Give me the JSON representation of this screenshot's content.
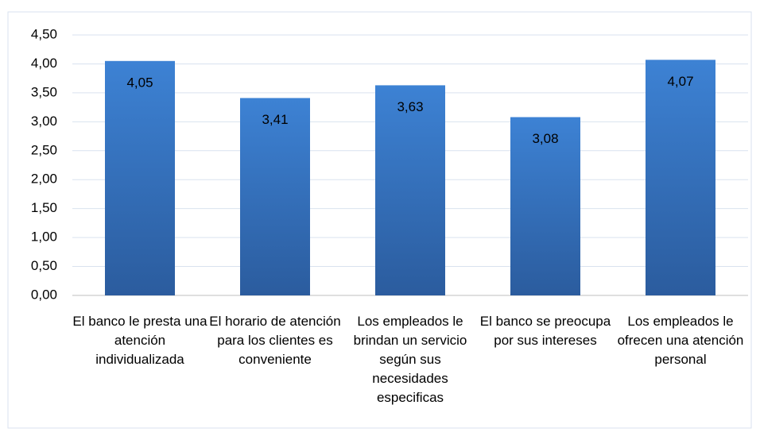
{
  "chart_data": {
    "type": "bar",
    "categories": [
      "El banco le presta una atención individualizada",
      "El horario de atención para los clientes es conveniente",
      "Los empleados le brindan un servicio según sus necesidades especificas",
      "El banco se preocupa por sus intereses",
      "Los empleados le ofrecen una atención personal"
    ],
    "values": [
      4.05,
      3.41,
      3.63,
      3.08,
      4.07
    ],
    "value_labels": [
      "4,05",
      "3,41",
      "3,63",
      "3,08",
      "4,07"
    ],
    "color": "#3476c8",
    "ylim": [
      0,
      4.5
    ],
    "yticks": [
      {
        "value": 0,
        "label": "0,00"
      },
      {
        "value": 0.5,
        "label": "0,50"
      },
      {
        "value": 1,
        "label": "1,00"
      },
      {
        "value": 1.5,
        "label": "1,50"
      },
      {
        "value": 2,
        "label": "2,00"
      },
      {
        "value": 2.5,
        "label": "2,50"
      },
      {
        "value": 3,
        "label": "3,00"
      },
      {
        "value": 3.5,
        "label": "3,50"
      },
      {
        "value": 4,
        "label": "4,00"
      },
      {
        "value": 4.5,
        "label": "4,50"
      }
    ],
    "grid": true
  }
}
